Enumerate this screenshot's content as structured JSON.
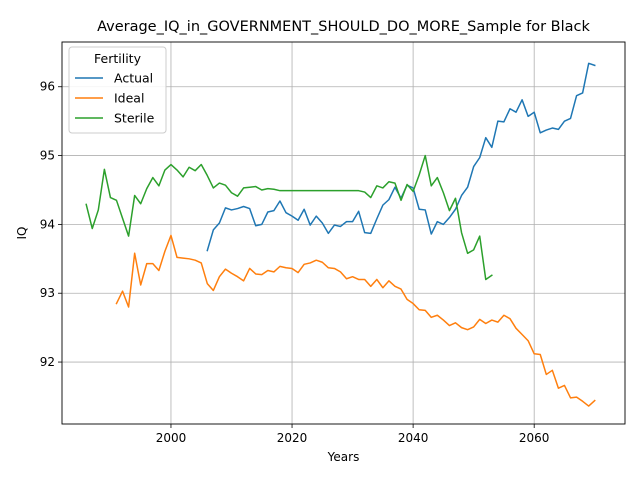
{
  "chart_data": {
    "type": "line",
    "title": "Average_IQ_in_GOVERNMENT_SHOULD_DO_MORE_Sample for Black",
    "xlabel": "Years",
    "ylabel": "IQ",
    "xlim": [
      1982,
      2075
    ],
    "ylim": [
      91.1,
      96.65
    ],
    "xticks": [
      2000,
      2020,
      2040,
      2060
    ],
    "yticks": [
      92,
      93,
      94,
      95,
      96
    ],
    "grid": true,
    "legend": {
      "title": "Fertility",
      "placement": "top-left"
    },
    "series": [
      {
        "name": "Actual",
        "color": "#1f77b4",
        "x": [
          2006,
          2007,
          2008,
          2009,
          2010,
          2011,
          2012,
          2013,
          2014,
          2015,
          2016,
          2017,
          2018,
          2019,
          2020,
          2021,
          2022,
          2023,
          2024,
          2025,
          2026,
          2027,
          2028,
          2029,
          2030,
          2031,
          2032,
          2033,
          2034,
          2035,
          2036,
          2037,
          2038,
          2039,
          2040,
          2041,
          2042,
          2043,
          2044,
          2045,
          2046,
          2047,
          2048,
          2049,
          2050,
          2051,
          2052,
          2053,
          2054,
          2055,
          2056,
          2057,
          2058,
          2059,
          2060,
          2061,
          2062,
          2063,
          2064,
          2065,
          2066,
          2067,
          2068,
          2069,
          2070
        ],
        "y": [
          93.62,
          93.92,
          94.02,
          94.24,
          94.21,
          94.23,
          94.26,
          94.23,
          93.98,
          94.0,
          94.18,
          94.2,
          94.34,
          94.17,
          94.12,
          94.06,
          94.22,
          93.99,
          94.12,
          94.02,
          93.87,
          93.99,
          93.97,
          94.04,
          94.04,
          94.19,
          93.88,
          93.87,
          94.08,
          94.28,
          94.36,
          94.54,
          94.38,
          94.57,
          94.53,
          94.22,
          94.21,
          93.86,
          94.04,
          94.0,
          94.1,
          94.22,
          94.42,
          94.54,
          94.84,
          94.97,
          95.26,
          95.12,
          95.5,
          95.49,
          95.68,
          95.63,
          95.81,
          95.57,
          95.63,
          95.33,
          95.37,
          95.4,
          95.38,
          95.5,
          95.54,
          95.87,
          95.91,
          96.34,
          96.31
        ]
      },
      {
        "name": "Ideal",
        "color": "#ff7f0e",
        "x": [
          1991,
          1992,
          1993,
          1994,
          1995,
          1996,
          1997,
          1998,
          1999,
          2000,
          2001,
          2002,
          2003,
          2004,
          2005,
          2006,
          2007,
          2008,
          2009,
          2010,
          2011,
          2012,
          2013,
          2014,
          2015,
          2016,
          2017,
          2018,
          2019,
          2020,
          2021,
          2022,
          2023,
          2024,
          2025,
          2026,
          2027,
          2028,
          2029,
          2030,
          2031,
          2032,
          2033,
          2034,
          2035,
          2036,
          2037,
          2038,
          2039,
          2040,
          2041,
          2042,
          2043,
          2044,
          2045,
          2046,
          2047,
          2048,
          2049,
          2050,
          2051,
          2052,
          2053,
          2054,
          2055,
          2056,
          2057,
          2058,
          2059,
          2060,
          2061,
          2062,
          2063,
          2064,
          2065,
          2066,
          2067,
          2068,
          2069,
          2070
        ],
        "y": [
          92.85,
          93.03,
          92.8,
          93.58,
          93.12,
          93.43,
          93.43,
          93.33,
          93.61,
          93.84,
          93.52,
          93.51,
          93.5,
          93.48,
          93.44,
          93.14,
          93.04,
          93.24,
          93.35,
          93.29,
          93.24,
          93.18,
          93.36,
          93.28,
          93.27,
          93.33,
          93.31,
          93.39,
          93.37,
          93.36,
          93.3,
          93.42,
          93.44,
          93.48,
          93.45,
          93.37,
          93.36,
          93.31,
          93.21,
          93.24,
          93.2,
          93.2,
          93.1,
          93.2,
          93.08,
          93.18,
          93.1,
          93.06,
          92.91,
          92.85,
          92.76,
          92.75,
          92.65,
          92.68,
          92.61,
          92.53,
          92.57,
          92.5,
          92.47,
          92.51,
          92.62,
          92.56,
          92.61,
          92.58,
          92.68,
          92.63,
          92.49,
          92.4,
          92.31,
          92.12,
          92.11,
          91.82,
          91.88,
          91.62,
          91.66,
          91.48,
          91.49,
          91.43,
          91.36,
          91.44
        ]
      },
      {
        "name": "Sterile",
        "color": "#2ca02c",
        "x": [
          1986,
          1987,
          1988,
          1989,
          1990,
          1991,
          1992,
          1993,
          1994,
          1995,
          1996,
          1997,
          1998,
          1999,
          2000,
          2001,
          2002,
          2003,
          2004,
          2005,
          2006,
          2007,
          2008,
          2009,
          2010,
          2011,
          2012,
          2013,
          2014,
          2015,
          2016,
          2017,
          2018,
          2019,
          2020,
          2021,
          2022,
          2023,
          2024,
          2025,
          2026,
          2027,
          2028,
          2029,
          2030,
          2031,
          2032,
          2033,
          2034,
          2035,
          2036,
          2037,
          2038,
          2039,
          2040,
          2041,
          2042,
          2043,
          2044,
          2045,
          2046,
          2047,
          2048,
          2049,
          2050,
          2051,
          2052,
          2053
        ],
        "y": [
          94.29,
          93.94,
          94.21,
          94.8,
          94.39,
          94.35,
          94.09,
          93.83,
          94.42,
          94.3,
          94.52,
          94.68,
          94.56,
          94.79,
          94.87,
          94.79,
          94.69,
          94.83,
          94.78,
          94.87,
          94.71,
          94.53,
          94.6,
          94.57,
          94.46,
          94.41,
          94.53,
          94.54,
          94.55,
          94.5,
          94.52,
          94.51,
          94.49,
          94.49,
          94.49,
          94.49,
          94.49,
          94.49,
          94.49,
          94.49,
          94.49,
          94.49,
          94.49,
          94.49,
          94.49,
          94.49,
          94.47,
          94.39,
          94.56,
          94.53,
          94.62,
          94.6,
          94.35,
          94.58,
          94.48,
          94.72,
          95.0,
          94.56,
          94.68,
          94.46,
          94.2,
          94.38,
          93.88,
          93.58,
          93.63,
          93.83,
          93.2,
          93.26
        ]
      }
    ]
  }
}
